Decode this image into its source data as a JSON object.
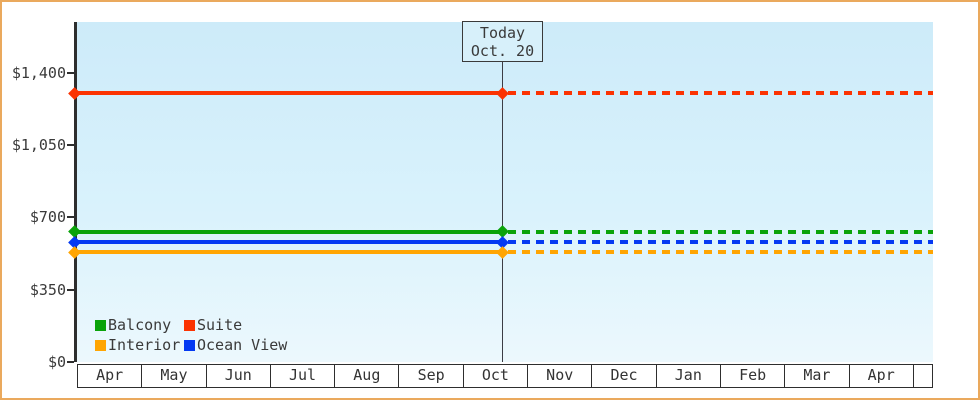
{
  "chart_data": {
    "type": "line",
    "title": "",
    "description": "Flat cabin price lines: solid history before today, dotted projection after today; diamond markers at axis start and at today",
    "y_axis": {
      "range": [
        0,
        1400
      ],
      "ticks": [
        {
          "value": 0,
          "label": "$0"
        },
        {
          "value": 350,
          "label": "$350"
        },
        {
          "value": 700,
          "label": "$700"
        },
        {
          "value": 1050,
          "label": "$1,050"
        },
        {
          "value": 1400,
          "label": "$1,400"
        }
      ]
    },
    "x_axis": {
      "months": [
        "Apr",
        "May",
        "Jun",
        "Jul",
        "Aug",
        "Sep",
        "Oct",
        "Nov",
        "Dec",
        "Jan",
        "Feb",
        "Mar",
        "Apr"
      ]
    },
    "today": {
      "line1": "Today",
      "line2": "Oct. 20"
    },
    "series": [
      {
        "name": "Suite",
        "color": "#fb3302",
        "value": 1300
      },
      {
        "name": "Balcony",
        "color": "#0aa30a",
        "value": 630
      },
      {
        "name": "Ocean View",
        "color": "#0439f2",
        "value": 580
      },
      {
        "name": "Interior",
        "color": "#ffa502",
        "value": 530
      }
    ],
    "legend": {
      "position": "inside-bottom-left",
      "items": [
        {
          "name": "Balcony",
          "color": "#0aa30a"
        },
        {
          "name": "Suite",
          "color": "#fb3302"
        },
        {
          "name": "Interior",
          "color": "#ffa502"
        },
        {
          "name": "Ocean View",
          "color": "#0439f2"
        }
      ]
    }
  },
  "colors": {
    "frame_border": "#eaa95d",
    "plot_gradient_top": "#cdebf9",
    "plot_gradient_bottom": "#ecf8fd",
    "axis": "#2e2e2e",
    "text": "#3a3a3a",
    "today_box_fill": "#d7f0fa"
  }
}
